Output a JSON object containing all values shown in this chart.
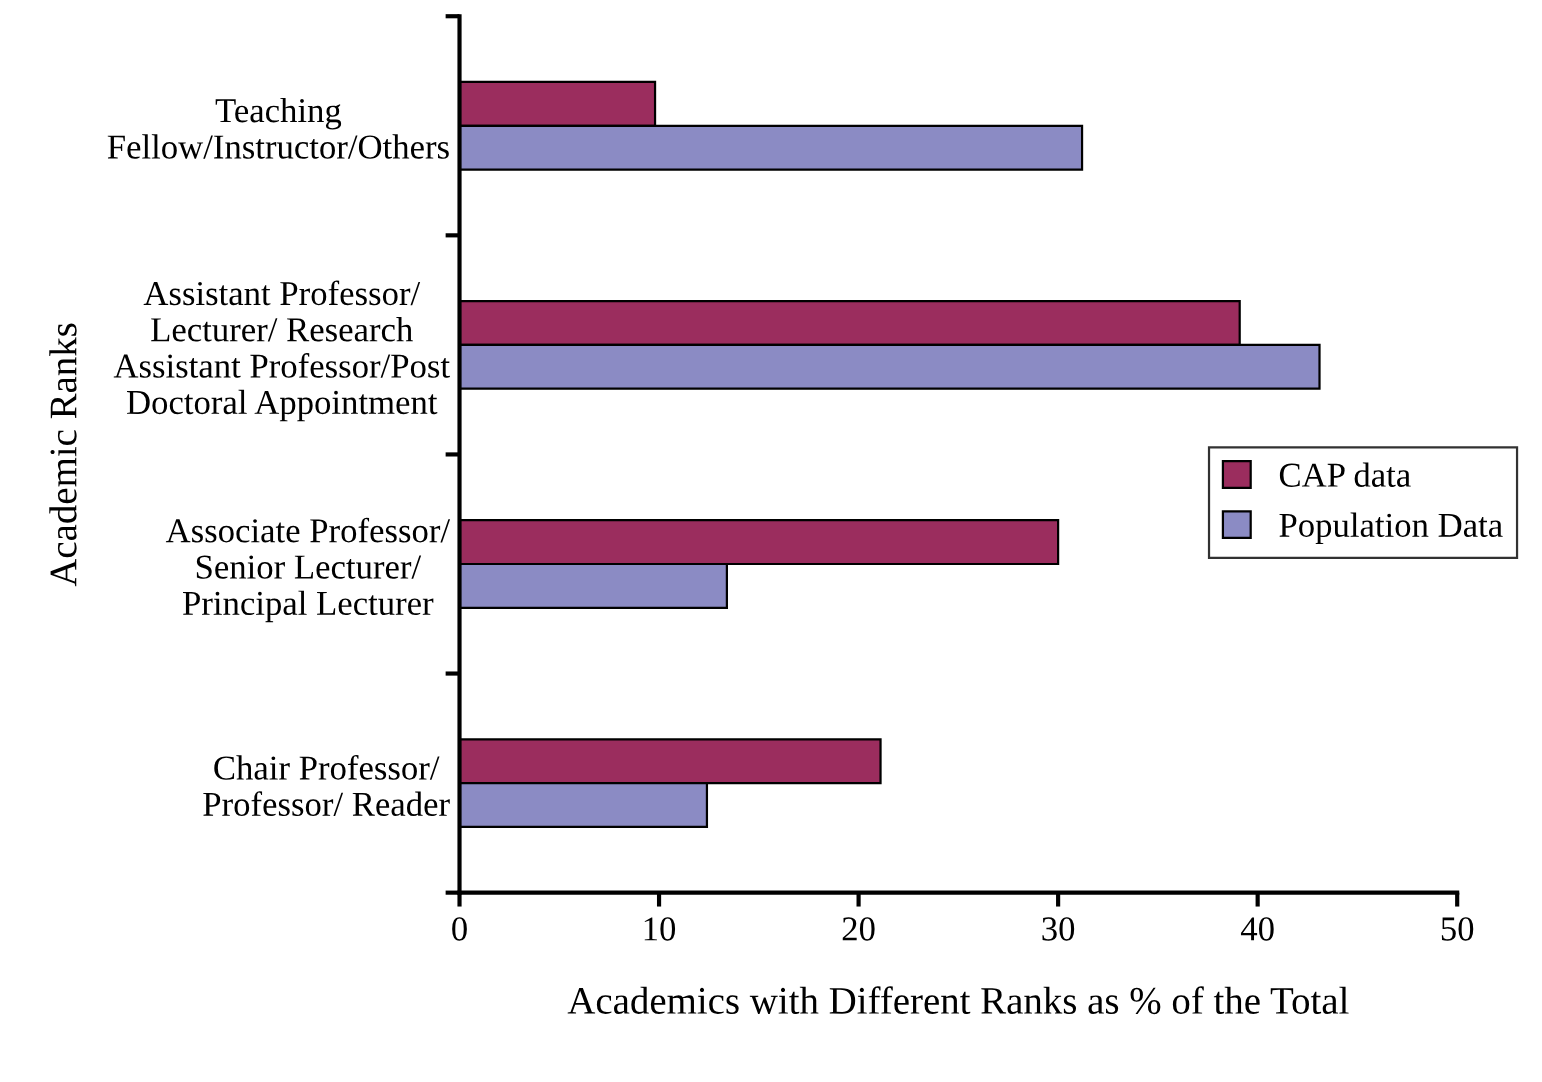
{
  "chart_data": {
    "type": "bar",
    "orientation": "horizontal",
    "xlabel": "Academics with Different Ranks as % of the Total",
    "ylabel": "Academic Ranks",
    "categories": [
      "Teaching\nFellow/Instructor/Others",
      "Assistant Professor/\nLecturer/ Research\nAssistant Professor/Post\nDoctoral Appointment",
      "Associate Professor/\nSenior Lecturer/\nPrincipal Lecturer",
      "Chair Professor/\nProfessor/ Reader"
    ],
    "series": [
      {
        "name": "CAP data",
        "color": "#9b2d5e",
        "values": [
          9.8,
          39.1,
          30.0,
          21.1
        ]
      },
      {
        "name": "Population Data",
        "color": "#8b8bc4",
        "values": [
          31.2,
          43.1,
          13.4,
          12.4
        ]
      }
    ],
    "xlim": [
      0,
      50
    ],
    "xticks": [
      0,
      10,
      20,
      30,
      40,
      50
    ],
    "grid": false,
    "legend": "right"
  }
}
